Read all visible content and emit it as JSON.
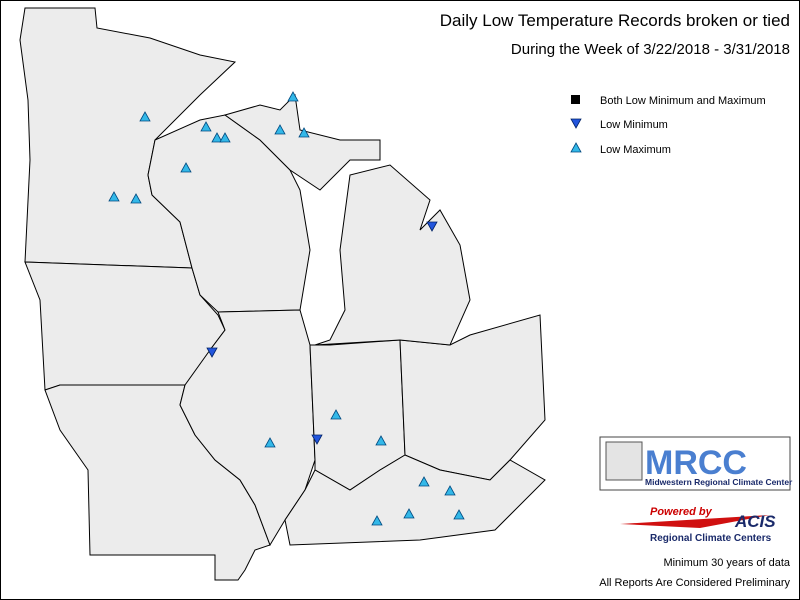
{
  "header": {
    "title": "Daily Low Temperature Records broken or tied",
    "subtitle": "During the Week of 3/22/2018 - 3/31/2018"
  },
  "legend": [
    "Both Low Minimum and Maximum",
    "Low Minimum",
    "Low Maximum"
  ],
  "logos": {
    "mrcc": "MRCC",
    "mrcc_name": "Midwestern Regional Climate Center",
    "powered": "Powered by",
    "acis": "ACIS",
    "acis_name": "Regional Climate Centers"
  },
  "notes": [
    "Minimum 30 years of data",
    "All Reports Are Considered Preliminary"
  ]
}
